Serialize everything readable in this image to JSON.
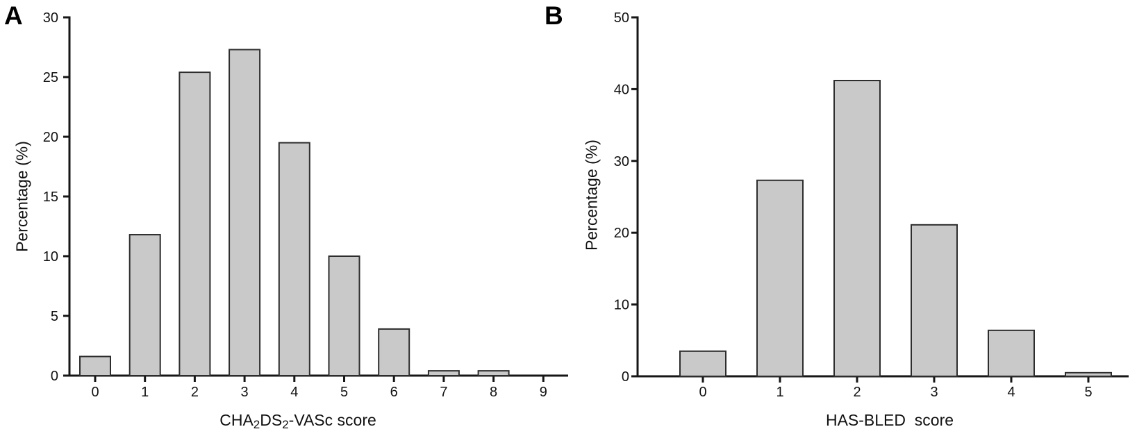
{
  "figure": {
    "background": "#ffffff",
    "axis_color": "#161616",
    "text_color": "#111111"
  },
  "chart_data": [
    {
      "type": "bar",
      "panel_label": "A",
      "title": "",
      "categories": [
        "0",
        "1",
        "2",
        "3",
        "4",
        "5",
        "6",
        "7",
        "8",
        "9"
      ],
      "values": [
        1.6,
        11.8,
        25.4,
        27.3,
        19.5,
        10.0,
        3.9,
        0.4,
        0.4,
        0
      ],
      "xlabel": "CHA2DS2-VASc score",
      "xlabel_parts": [
        {
          "t": "CHA"
        },
        {
          "t": "2",
          "sub": true
        },
        {
          "t": "DS"
        },
        {
          "t": "2",
          "sub": true
        },
        {
          "t": "-VASc score"
        }
      ],
      "ylabel": "Percentage (%)",
      "ylim": [
        0,
        30
      ],
      "yticks": [
        0,
        5,
        10,
        15,
        20,
        25,
        30
      ],
      "grid": false,
      "legend": "none",
      "bar_fill": "#c9c9c9",
      "bar_border": "#2d2d2d"
    },
    {
      "type": "bar",
      "panel_label": "B",
      "title": "",
      "categories": [
        "0",
        "1",
        "2",
        "3",
        "4",
        "5"
      ],
      "values": [
        3.5,
        27.3,
        41.2,
        21.1,
        6.4,
        0.5
      ],
      "xlabel": "HAS-BLED score",
      "xlabel_parts": [
        {
          "t": "HAS-BLED  score"
        }
      ],
      "ylabel": "Percentage (%)",
      "ylim": [
        0,
        50
      ],
      "yticks": [
        0,
        10,
        20,
        30,
        40,
        50
      ],
      "grid": false,
      "legend": "none",
      "bar_fill": "#c9c9c9",
      "bar_border": "#2d2d2d"
    }
  ]
}
